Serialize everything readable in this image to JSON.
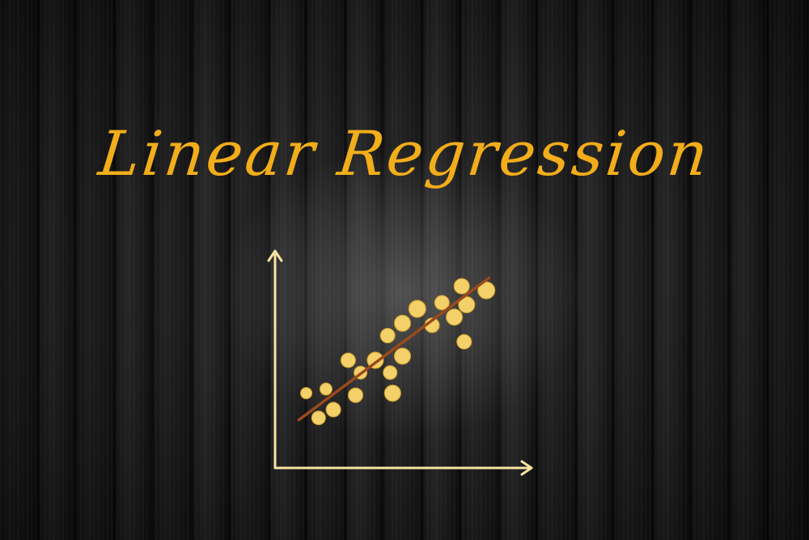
{
  "title": "Linear Regression",
  "colors": {
    "title": "#f2ad1a",
    "axes": "#f6e3a1",
    "points": "#f3d06a",
    "point_outline": "#c99a2a",
    "regression_line": "#9b4a1c"
  },
  "icons": {
    "y_axis_arrow": "arrow-up-icon",
    "x_axis_arrow": "arrow-right-icon"
  },
  "chart_data": {
    "type": "scatter",
    "title": "",
    "xlabel": "",
    "ylabel": "",
    "xlim": [
      0,
      10
    ],
    "ylim": [
      0,
      10
    ],
    "grid": false,
    "points": [
      {
        "x": 1.1,
        "y": 3.4,
        "r": 0.7
      },
      {
        "x": 1.6,
        "y": 2.2,
        "r": 0.85
      },
      {
        "x": 1.9,
        "y": 3.6,
        "r": 0.75
      },
      {
        "x": 2.2,
        "y": 2.6,
        "r": 0.9
      },
      {
        "x": 2.8,
        "y": 5.0,
        "r": 0.9
      },
      {
        "x": 3.1,
        "y": 3.3,
        "r": 0.9
      },
      {
        "x": 3.3,
        "y": 4.4,
        "r": 0.8
      },
      {
        "x": 3.9,
        "y": 5.0,
        "r": 1.0
      },
      {
        "x": 4.4,
        "y": 6.2,
        "r": 0.9
      },
      {
        "x": 4.5,
        "y": 4.4,
        "r": 0.85
      },
      {
        "x": 4.6,
        "y": 3.4,
        "r": 1.0
      },
      {
        "x": 5.0,
        "y": 5.2,
        "r": 1.0
      },
      {
        "x": 5.0,
        "y": 6.8,
        "r": 1.0
      },
      {
        "x": 5.6,
        "y": 7.5,
        "r": 1.05
      },
      {
        "x": 6.2,
        "y": 6.7,
        "r": 0.9
      },
      {
        "x": 6.6,
        "y": 7.8,
        "r": 0.9
      },
      {
        "x": 7.1,
        "y": 7.1,
        "r": 1.0
      },
      {
        "x": 7.4,
        "y": 8.6,
        "r": 0.95
      },
      {
        "x": 7.5,
        "y": 5.9,
        "r": 0.9
      },
      {
        "x": 7.6,
        "y": 7.7,
        "r": 1.0
      },
      {
        "x": 8.4,
        "y": 8.4,
        "r": 1.05
      }
    ],
    "regression_line": {
      "x1": 0.8,
      "y1": 2.1,
      "x2": 8.5,
      "y2": 9.0
    }
  }
}
